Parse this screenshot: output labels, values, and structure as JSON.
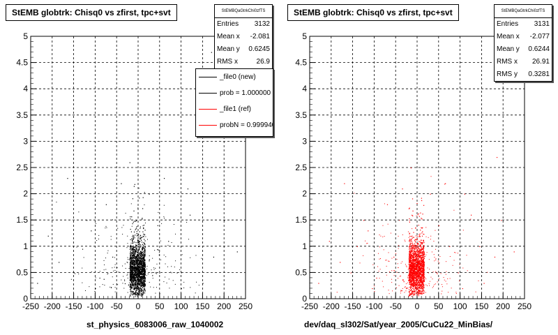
{
  "chart_data": [
    {
      "type": "scatter",
      "title": "StEMB globtrk: Chisq0 vs zfirst, tpc+svt",
      "xlabel": "st_physics_6083006_raw_1040002",
      "ylabel": "",
      "xlim": [
        -250,
        250
      ],
      "ylim": [
        0,
        5
      ],
      "x_ticks": [
        "-250",
        "-200",
        "-150",
        "-100",
        "-50",
        "0",
        "50",
        "100",
        "150",
        "200",
        "250"
      ],
      "y_ticks": [
        "0",
        "0.5",
        "1",
        "1.5",
        "2",
        "2.5",
        "3",
        "3.5",
        "4",
        "4.5",
        "5"
      ],
      "grid": true,
      "marker_color": "#000000",
      "stats": {
        "name": "StEMBQaGtrkChi0zfTS",
        "rows": [
          {
            "label": "Entries",
            "value": "3132"
          },
          {
            "label": "Mean x",
            "value": "-2.081"
          },
          {
            "label": "Mean y",
            "value": "0.6245"
          },
          {
            "label": "RMS x",
            "value": "26.9"
          }
        ]
      },
      "legend": {
        "placement": "top-right",
        "items": [
          {
            "label": "_file0 (new)",
            "color": "#000000"
          },
          {
            "label": "prob = 1.000000",
            "color": "#000000"
          },
          {
            "label": "_file1 (ref)",
            "color": "#ff0000"
          },
          {
            "label": "probN = 0.999940",
            "color": "#ff0000"
          }
        ]
      },
      "cluster": {
        "x_center": -2,
        "x_halfwidth": 18,
        "y_center": 0.55,
        "y_spread": 0.25,
        "count": 1800
      },
      "scatter_points": [
        [
          -130,
          0.95
        ],
        [
          -110,
          1.3
        ],
        [
          -90,
          0.4
        ],
        [
          -75,
          1.8
        ],
        [
          -60,
          0.8
        ],
        [
          -150,
          0.5
        ],
        [
          -165,
          2.3
        ],
        [
          -210,
          1.2
        ],
        [
          70,
          1.1
        ],
        [
          90,
          0.5
        ],
        [
          120,
          1.6
        ],
        [
          150,
          0.3
        ],
        [
          175,
          0.8
        ],
        [
          200,
          1.5
        ],
        [
          -40,
          2.2
        ],
        [
          -20,
          2.6
        ],
        [
          25,
          2.0
        ],
        [
          45,
          1.4
        ],
        [
          115,
          2.1
        ],
        [
          230,
          0.9
        ],
        [
          -235,
          0.3
        ],
        [
          -185,
          0.7
        ],
        [
          60,
          2.3
        ],
        [
          -50,
          0.6
        ],
        [
          40,
          0.5
        ],
        [
          -100,
          0.2
        ],
        [
          100,
          0.2
        ],
        [
          140,
          1.0
        ],
        [
          -120,
          1.5
        ],
        [
          170,
          4.7
        ]
      ]
    },
    {
      "type": "scatter",
      "title": "StEMB globtrk: Chisq0 vs zfirst, tpc+svt",
      "xlabel": "dev/daq_sl302/Sat/year_2005/CuCu22_MinBias/",
      "ylabel": "",
      "xlim": [
        -250,
        250
      ],
      "ylim": [
        0,
        5
      ],
      "x_ticks": [
        "-250",
        "-200",
        "-150",
        "-100",
        "-50",
        "0",
        "50",
        "100",
        "150",
        "200",
        "250"
      ],
      "y_ticks": [
        "0",
        "0.5",
        "1",
        "1.5",
        "2",
        "2.5",
        "3",
        "3.5",
        "4",
        "4.5",
        "5"
      ],
      "grid": true,
      "marker_color": "#ff0000",
      "stats": {
        "name": "StEMBQaGtrkChi0zfTS",
        "rows": [
          {
            "label": "Entries",
            "value": "3131"
          },
          {
            "label": "Mean x",
            "value": "-2.077"
          },
          {
            "label": "Mean y",
            "value": "0.6244"
          },
          {
            "label": "RMS x",
            "value": "26.91"
          },
          {
            "label": "RMS y",
            "value": "0.3281"
          }
        ]
      },
      "cluster": {
        "x_center": -2,
        "x_halfwidth": 18,
        "y_center": 0.55,
        "y_spread": 0.25,
        "count": 1800
      },
      "scatter_points": [
        [
          -140,
          1.0
        ],
        [
          -115,
          1.3
        ],
        [
          -95,
          0.4
        ],
        [
          -70,
          1.8
        ],
        [
          -55,
          0.8
        ],
        [
          -155,
          0.5
        ],
        [
          -170,
          2.2
        ],
        [
          -205,
          1.1
        ],
        [
          75,
          1.0
        ],
        [
          95,
          0.5
        ],
        [
          125,
          1.6
        ],
        [
          155,
          0.3
        ],
        [
          180,
          0.8
        ],
        [
          195,
          1.5
        ],
        [
          -35,
          2.1
        ],
        [
          -15,
          2.5
        ],
        [
          30,
          2.0
        ],
        [
          50,
          1.4
        ],
        [
          110,
          2.0
        ],
        [
          225,
          0.9
        ],
        [
          -230,
          0.3
        ],
        [
          -180,
          0.7
        ],
        [
          65,
          2.2
        ],
        [
          -45,
          0.6
        ],
        [
          45,
          0.5
        ],
        [
          -105,
          0.2
        ],
        [
          105,
          0.2
        ],
        [
          145,
          1.0
        ],
        [
          -125,
          1.5
        ],
        [
          185,
          2.7
        ]
      ]
    }
  ]
}
